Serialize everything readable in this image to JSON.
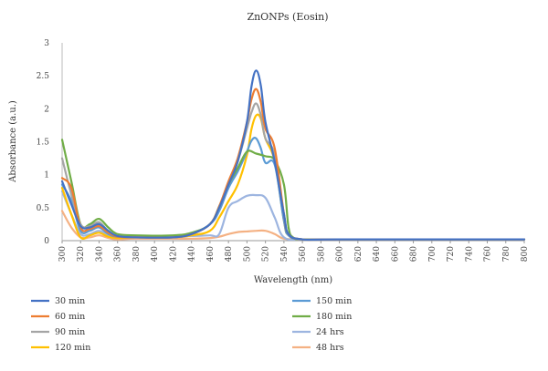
{
  "chart_data": {
    "type": "line",
    "title": "ZnONPs (Eosin)",
    "xlabel": "Wavelength (nm)",
    "ylabel": "Absorbance (a.u.)",
    "xlim": [
      300,
      800
    ],
    "ylim": [
      0,
      3
    ],
    "x_ticks": [
      "300",
      "320",
      "340",
      "360",
      "380",
      "400",
      "420",
      "440",
      "460",
      "480",
      "500",
      "520",
      "540",
      "560",
      "580",
      "600",
      "620",
      "640",
      "660",
      "680",
      "700",
      "720",
      "740",
      "760",
      "780",
      "800"
    ],
    "y_ticks": [
      "0",
      "0.5",
      "1",
      "1.5",
      "2",
      "2.5",
      "3"
    ],
    "grid": false,
    "legend_position": "bottom",
    "series": [
      {
        "name": "30 min",
        "color": "#4472C4",
        "points": [
          [
            300,
            0.9
          ],
          [
            310,
            0.55
          ],
          [
            320,
            0.22
          ],
          [
            330,
            0.2
          ],
          [
            340,
            0.25
          ],
          [
            350,
            0.15
          ],
          [
            360,
            0.07
          ],
          [
            380,
            0.05
          ],
          [
            420,
            0.05
          ],
          [
            440,
            0.1
          ],
          [
            460,
            0.25
          ],
          [
            470,
            0.5
          ],
          [
            480,
            0.85
          ],
          [
            490,
            1.2
          ],
          [
            500,
            1.8
          ],
          [
            505,
            2.35
          ],
          [
            510,
            2.58
          ],
          [
            515,
            2.35
          ],
          [
            520,
            1.8
          ],
          [
            530,
            1.2
          ],
          [
            540,
            0.4
          ],
          [
            545,
            0.1
          ],
          [
            560,
            0.02
          ],
          [
            600,
            0.02
          ],
          [
            800,
            0.02
          ]
        ]
      },
      {
        "name": "60 min",
        "color": "#ED7D31",
        "points": [
          [
            300,
            0.95
          ],
          [
            310,
            0.8
          ],
          [
            320,
            0.2
          ],
          [
            330,
            0.18
          ],
          [
            340,
            0.22
          ],
          [
            350,
            0.12
          ],
          [
            360,
            0.06
          ],
          [
            380,
            0.05
          ],
          [
            420,
            0.05
          ],
          [
            440,
            0.1
          ],
          [
            460,
            0.25
          ],
          [
            470,
            0.52
          ],
          [
            480,
            0.9
          ],
          [
            490,
            1.25
          ],
          [
            500,
            1.8
          ],
          [
            505,
            2.15
          ],
          [
            510,
            2.3
          ],
          [
            515,
            2.1
          ],
          [
            520,
            1.7
          ],
          [
            530,
            1.4
          ],
          [
            540,
            0.4
          ],
          [
            545,
            0.1
          ],
          [
            560,
            0.02
          ],
          [
            600,
            0.02
          ],
          [
            800,
            0.02
          ]
        ]
      },
      {
        "name": "90 min",
        "color": "#A5A5A5",
        "points": [
          [
            300,
            1.25
          ],
          [
            310,
            0.7
          ],
          [
            320,
            0.25
          ],
          [
            330,
            0.22
          ],
          [
            340,
            0.28
          ],
          [
            350,
            0.14
          ],
          [
            360,
            0.07
          ],
          [
            380,
            0.05
          ],
          [
            420,
            0.05
          ],
          [
            440,
            0.1
          ],
          [
            460,
            0.25
          ],
          [
            470,
            0.5
          ],
          [
            480,
            0.85
          ],
          [
            490,
            1.2
          ],
          [
            500,
            1.7
          ],
          [
            505,
            1.95
          ],
          [
            510,
            2.08
          ],
          [
            515,
            1.9
          ],
          [
            520,
            1.55
          ],
          [
            530,
            1.3
          ],
          [
            540,
            0.4
          ],
          [
            545,
            0.1
          ],
          [
            560,
            0.02
          ],
          [
            600,
            0.02
          ],
          [
            800,
            0.02
          ]
        ]
      },
      {
        "name": "120 min",
        "color": "#FFC000",
        "points": [
          [
            300,
            0.8
          ],
          [
            310,
            0.4
          ],
          [
            320,
            0.05
          ],
          [
            330,
            0.08
          ],
          [
            340,
            0.12
          ],
          [
            350,
            0.06
          ],
          [
            360,
            0.04
          ],
          [
            380,
            0.05
          ],
          [
            420,
            0.05
          ],
          [
            440,
            0.08
          ],
          [
            460,
            0.15
          ],
          [
            470,
            0.35
          ],
          [
            480,
            0.6
          ],
          [
            490,
            0.85
          ],
          [
            500,
            1.3
          ],
          [
            505,
            1.7
          ],
          [
            510,
            1.9
          ],
          [
            515,
            1.85
          ],
          [
            520,
            1.55
          ],
          [
            530,
            1.2
          ],
          [
            540,
            0.3
          ],
          [
            545,
            0.08
          ],
          [
            560,
            0.02
          ],
          [
            600,
            0.02
          ],
          [
            800,
            0.02
          ]
        ]
      },
      {
        "name": "150 min",
        "color": "#5B9BD5",
        "points": [
          [
            300,
            0.85
          ],
          [
            310,
            0.6
          ],
          [
            320,
            0.15
          ],
          [
            330,
            0.15
          ],
          [
            340,
            0.2
          ],
          [
            350,
            0.1
          ],
          [
            360,
            0.06
          ],
          [
            380,
            0.05
          ],
          [
            420,
            0.05
          ],
          [
            440,
            0.1
          ],
          [
            460,
            0.25
          ],
          [
            470,
            0.45
          ],
          [
            480,
            0.8
          ],
          [
            490,
            1.05
          ],
          [
            500,
            1.35
          ],
          [
            505,
            1.52
          ],
          [
            510,
            1.55
          ],
          [
            515,
            1.4
          ],
          [
            520,
            1.18
          ],
          [
            530,
            1.15
          ],
          [
            540,
            0.3
          ],
          [
            545,
            0.08
          ],
          [
            560,
            0.02
          ],
          [
            600,
            0.02
          ],
          [
            800,
            0.02
          ]
        ]
      },
      {
        "name": "180 min",
        "color": "#70AD47",
        "points": [
          [
            300,
            1.53
          ],
          [
            310,
            0.9
          ],
          [
            320,
            0.25
          ],
          [
            330,
            0.25
          ],
          [
            340,
            0.33
          ],
          [
            350,
            0.2
          ],
          [
            360,
            0.1
          ],
          [
            380,
            0.08
          ],
          [
            420,
            0.08
          ],
          [
            440,
            0.12
          ],
          [
            460,
            0.25
          ],
          [
            470,
            0.52
          ],
          [
            480,
            0.85
          ],
          [
            490,
            1.1
          ],
          [
            500,
            1.35
          ],
          [
            510,
            1.32
          ],
          [
            520,
            1.28
          ],
          [
            530,
            1.22
          ],
          [
            540,
            0.85
          ],
          [
            545,
            0.2
          ],
          [
            550,
            0.05
          ],
          [
            560,
            0.02
          ],
          [
            600,
            0.02
          ],
          [
            800,
            0.02
          ]
        ]
      },
      {
        "name": "24 hrs",
        "color": "#9DB5E0",
        "points": [
          [
            300,
            0.75
          ],
          [
            310,
            0.4
          ],
          [
            320,
            0.1
          ],
          [
            330,
            0.1
          ],
          [
            340,
            0.15
          ],
          [
            350,
            0.08
          ],
          [
            360,
            0.05
          ],
          [
            380,
            0.06
          ],
          [
            420,
            0.06
          ],
          [
            440,
            0.07
          ],
          [
            460,
            0.08
          ],
          [
            470,
            0.1
          ],
          [
            480,
            0.5
          ],
          [
            490,
            0.6
          ],
          [
            500,
            0.68
          ],
          [
            510,
            0.69
          ],
          [
            520,
            0.65
          ],
          [
            530,
            0.35
          ],
          [
            540,
            0.05
          ],
          [
            560,
            0.02
          ],
          [
            600,
            0.02
          ],
          [
            800,
            0.02
          ]
        ]
      },
      {
        "name": "48 hrs",
        "color": "#F4B183",
        "points": [
          [
            300,
            0.45
          ],
          [
            310,
            0.2
          ],
          [
            320,
            0.05
          ],
          [
            330,
            0.05
          ],
          [
            340,
            0.08
          ],
          [
            350,
            0.04
          ],
          [
            360,
            0.02
          ],
          [
            380,
            0.03
          ],
          [
            420,
            0.03
          ],
          [
            440,
            0.03
          ],
          [
            460,
            0.04
          ],
          [
            470,
            0.06
          ],
          [
            480,
            0.1
          ],
          [
            490,
            0.13
          ],
          [
            500,
            0.14
          ],
          [
            510,
            0.15
          ],
          [
            520,
            0.15
          ],
          [
            530,
            0.1
          ],
          [
            540,
            0.03
          ],
          [
            560,
            0.02
          ],
          [
            600,
            0.02
          ],
          [
            800,
            0.02
          ]
        ]
      }
    ]
  }
}
